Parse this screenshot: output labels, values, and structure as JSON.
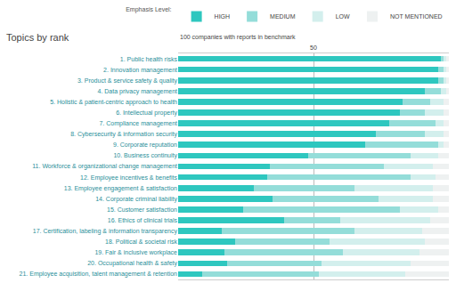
{
  "chart_data": {
    "type": "bar",
    "orientation": "horizontal",
    "stacked": true,
    "ylabel": "Topics by rank",
    "xlabel": "100 companies with reports in benchmark",
    "legend_title": "Emphasis Level:",
    "legend": "top",
    "grid": true,
    "xlim": [
      0,
      100
    ],
    "xticks": [
      50
    ],
    "categories": [
      "1. Public health risks",
      "2. Innovation management",
      "3. Product & service safety & quality",
      "4. Data privacy management",
      "5. Holistic & patient-centric approach to health",
      "6. Intellectual property",
      "7. Compliance management",
      "8. Cybersecurity & information security",
      "9. Corporate reputation",
      "10. Business continuity",
      "11. Workforce & organizational change management",
      "12. Employee incentives & benefits",
      "13. Employee engagement & satisfaction",
      "14. Corporate criminal liability",
      "15. Customer satisfaction",
      "16. Ethics of clinical trials",
      "17. Certification, labeling & information transparency",
      "18. Political & societal risk",
      "19. Fair & inclusive workplace",
      "20. Occupational health & safety",
      "21. Employee acquisition, talent management & retention"
    ],
    "series": [
      {
        "name": "HIGH",
        "color": "#2ec7bf",
        "values": [
          97,
          96,
          96,
          91,
          83,
          82,
          78,
          73,
          69,
          48,
          34,
          33,
          28,
          35,
          24,
          39,
          16,
          21,
          17,
          18,
          9
        ]
      },
      {
        "name": "MEDIUM",
        "color": "#94ddd9",
        "values": [
          1,
          2,
          2,
          6,
          10,
          9,
          17,
          18,
          27,
          38,
          42,
          53,
          37,
          39,
          58,
          21,
          49,
          35,
          44,
          35,
          43
        ]
      },
      {
        "name": "LOW",
        "color": "#d3efed",
        "values": [
          1,
          1,
          1,
          2,
          5,
          7,
          3,
          7,
          2,
          10,
          18,
          9,
          29,
          20,
          14,
          33,
          25,
          35,
          28,
          33,
          32
        ]
      },
      {
        "name": "NOT MENTIONED",
        "color": "#eef1f1",
        "values": [
          1,
          1,
          1,
          1,
          2,
          2,
          2,
          2,
          2,
          4,
          6,
          5,
          6,
          6,
          4,
          7,
          10,
          9,
          11,
          14,
          16
        ]
      }
    ]
  }
}
